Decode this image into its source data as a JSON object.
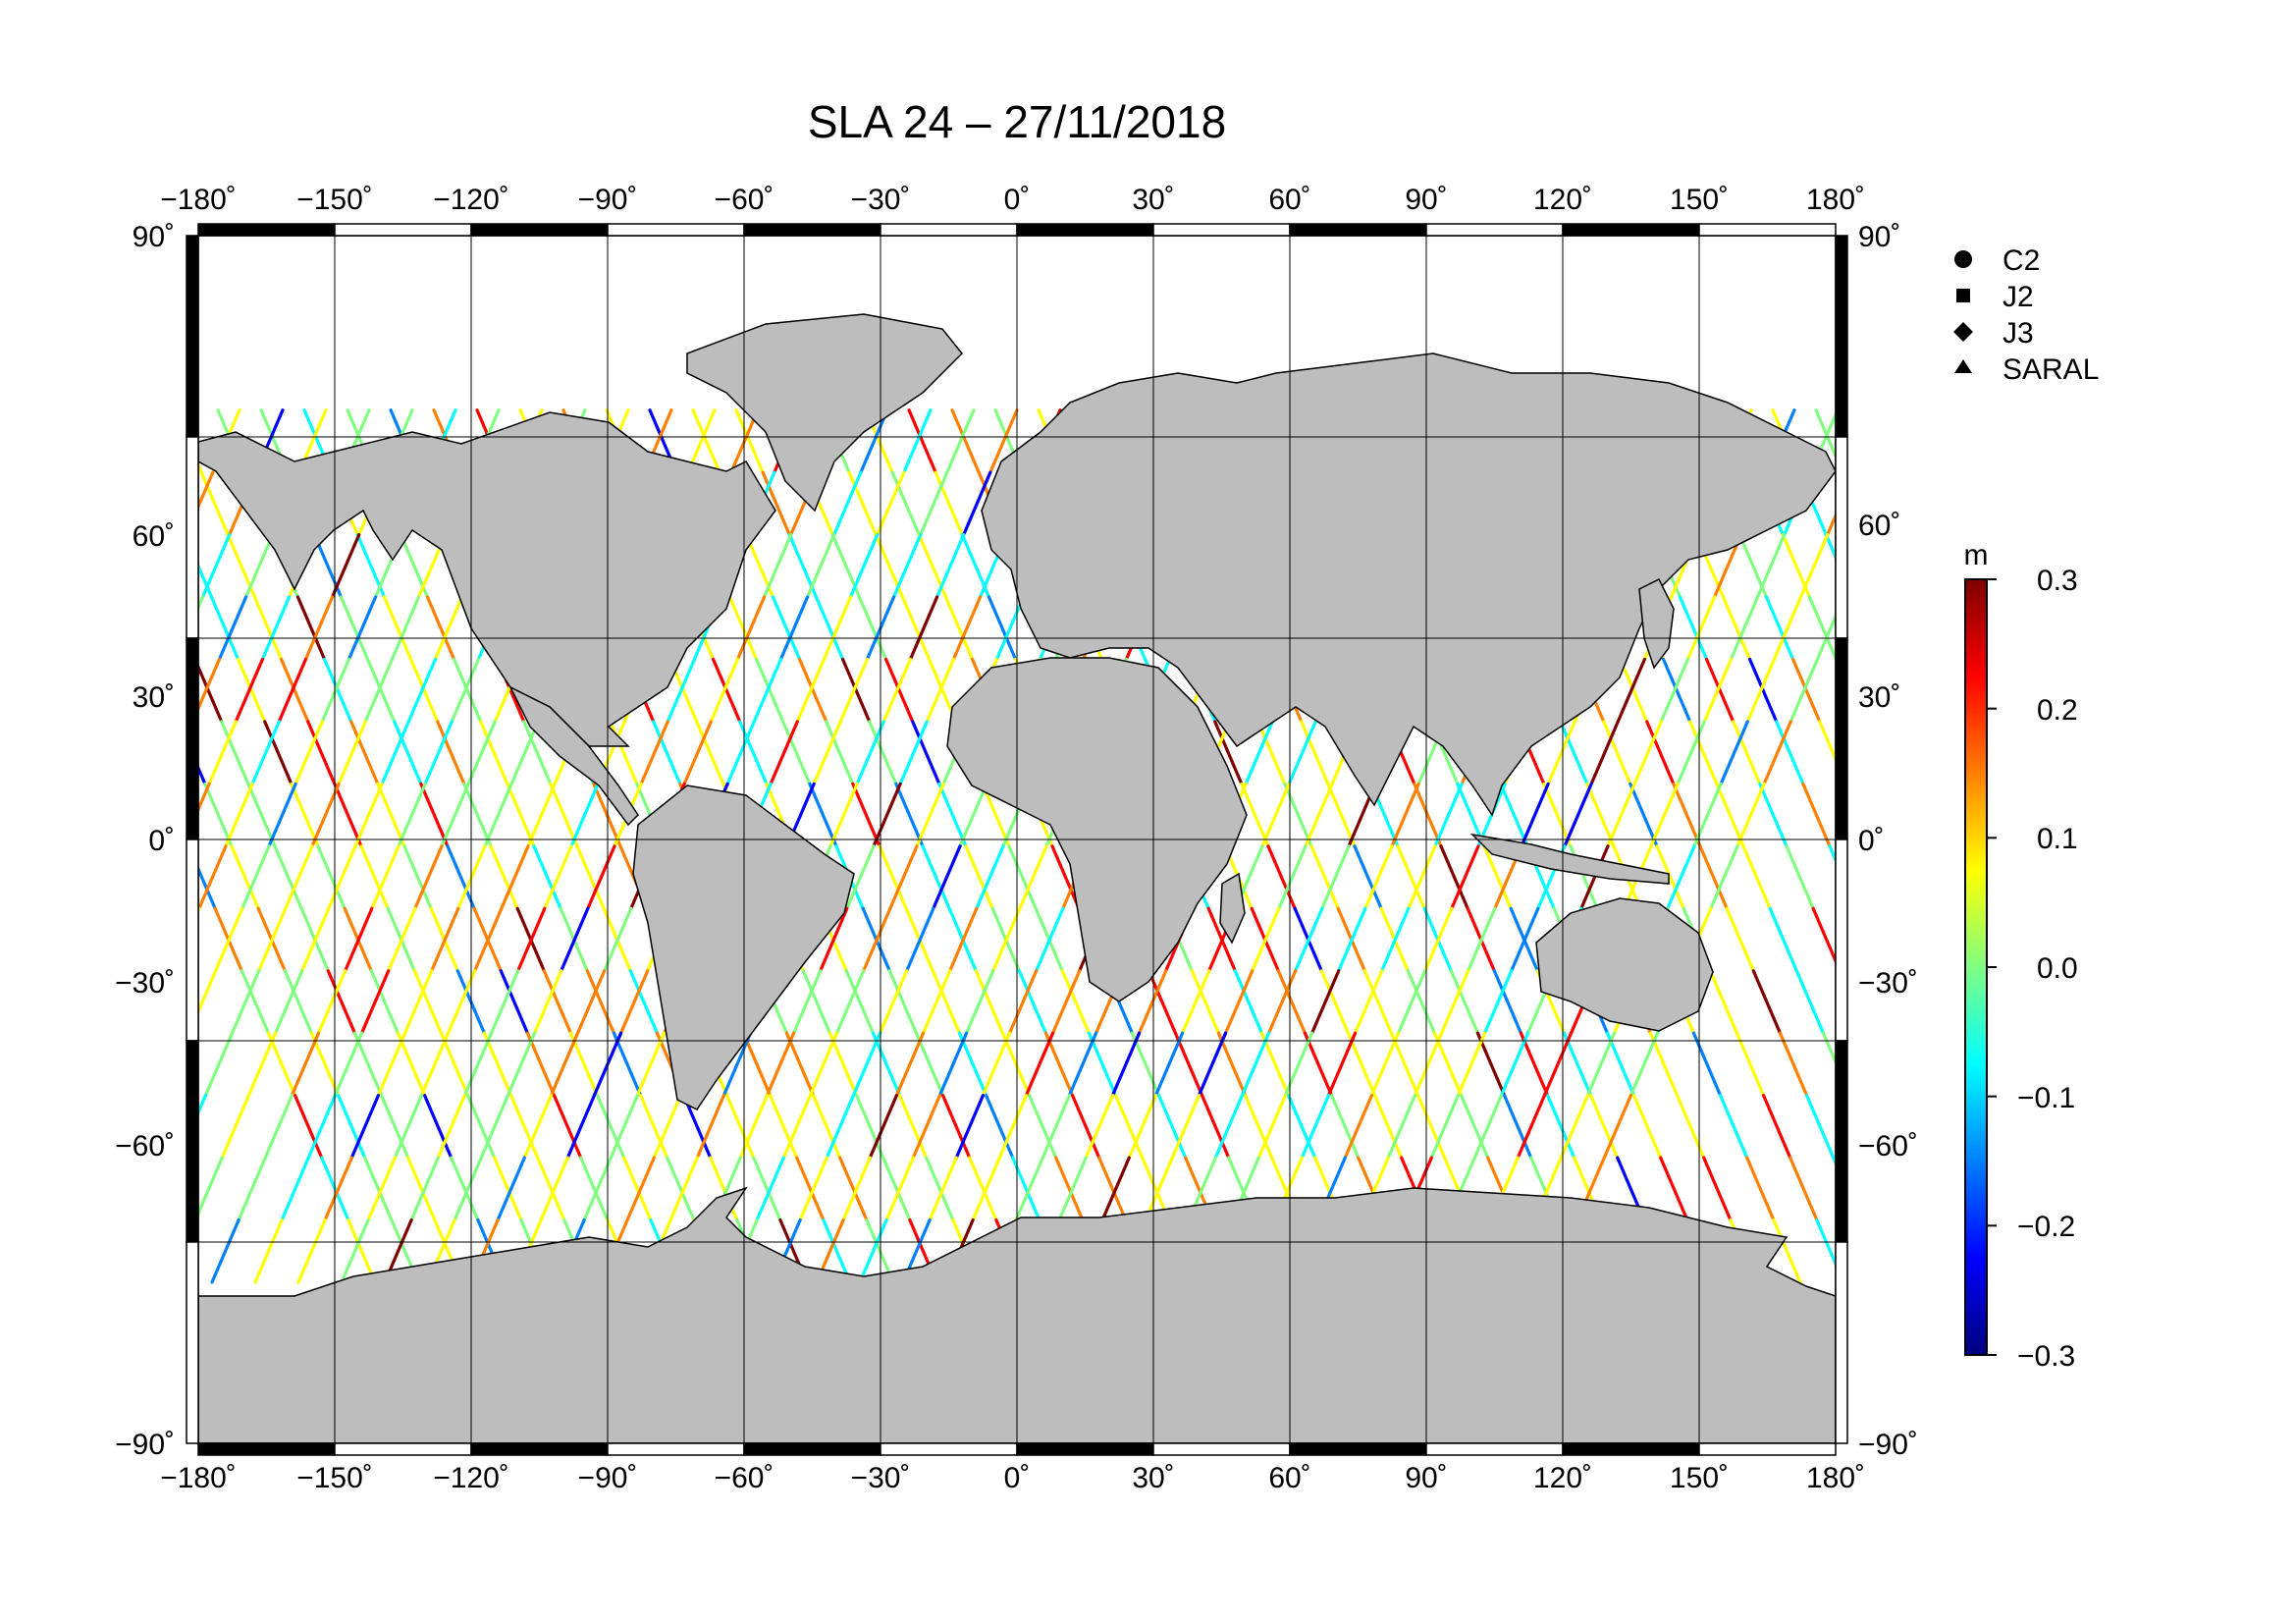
{
  "title": "SLA 24 – 27/11/2018",
  "map": {
    "lon_ticks": [
      "−180˚",
      "−150˚",
      "−120˚",
      "−90˚",
      "−60˚",
      "−30˚",
      "0˚",
      "30˚",
      "60˚",
      "90˚",
      "120˚",
      "150˚",
      "180˚"
    ],
    "lat_ticks_left": [
      "90˚",
      "60˚",
      "30˚",
      "0˚",
      "−30˚",
      "−60˚",
      "−90˚"
    ],
    "lat_ticks_right": [
      "90˚",
      "60˚",
      "30˚",
      "0˚",
      "−30˚",
      "−60˚",
      "−90˚"
    ],
    "lon_range": [
      -180,
      180
    ],
    "lat_range": [
      -90,
      90
    ],
    "grid": true,
    "land_color": "#bdbdbd"
  },
  "legend": {
    "items": [
      {
        "symbol": "circle",
        "label": "C2"
      },
      {
        "symbol": "square",
        "label": "J2"
      },
      {
        "symbol": "diamond",
        "label": "J3"
      },
      {
        "symbol": "triangle",
        "label": "SARAL"
      }
    ]
  },
  "colorbar": {
    "unit": "m",
    "range": [
      -0.3,
      0.3
    ],
    "tick_labels": [
      "0.3",
      "0.2",
      "0.1",
      "0.0",
      "−0.1",
      "−0.2",
      "−0.3"
    ],
    "colors": [
      "#7f0000",
      "#ff0000",
      "#ff8000",
      "#ffff00",
      "#80ff80",
      "#00ffff",
      "#0080ff",
      "#0000ff",
      "#00007f"
    ]
  }
}
